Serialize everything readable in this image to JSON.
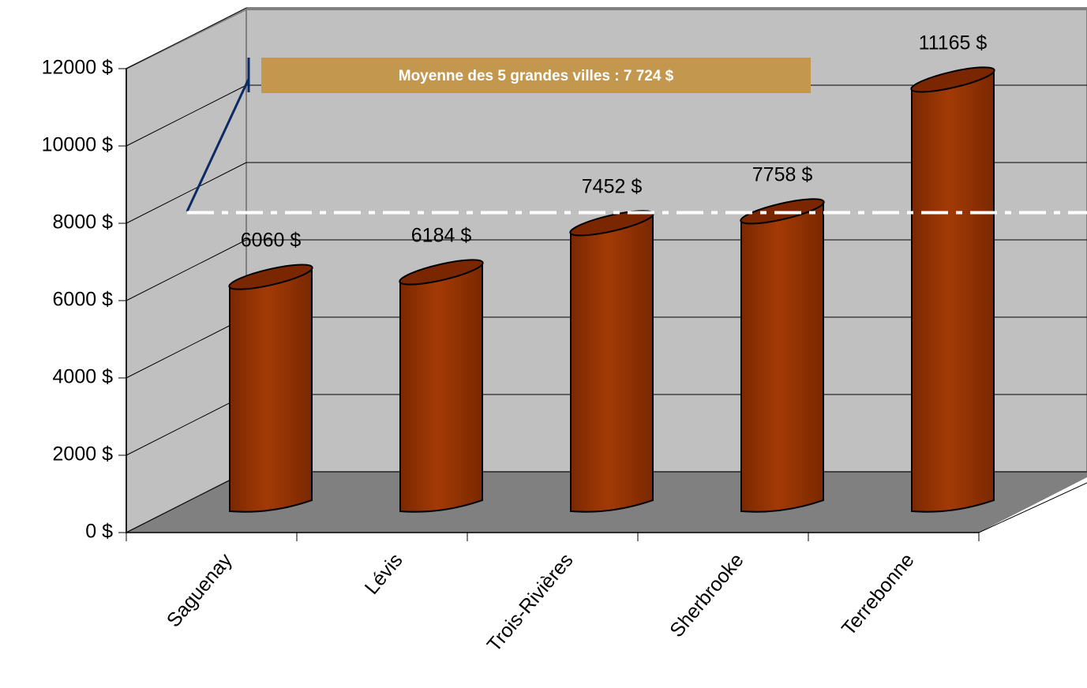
{
  "chart_data": {
    "type": "bar",
    "categories": [
      "Saguenay",
      "Lévis",
      "Trois-Rivières",
      "Sherbrooke",
      "Terrebonne"
    ],
    "values": [
      6060,
      6184,
      7452,
      7758,
      11165
    ],
    "value_labels": [
      "6060 $",
      "6184 $",
      "7452 $",
      "7758 $",
      "11165 $"
    ],
    "color": "#993300",
    "ylim": [
      0,
      12000
    ],
    "yticks": [
      {
        "value": 0,
        "label": "0 $"
      },
      {
        "value": 2000,
        "label": "2000 $"
      },
      {
        "value": 4000,
        "label": "4000 $"
      },
      {
        "value": 6000,
        "label": "6000 $"
      },
      {
        "value": 8000,
        "label": "8000 $"
      },
      {
        "value": 10000,
        "label": "10000 $"
      },
      {
        "value": 12000,
        "label": "12000 $"
      }
    ],
    "grid": true,
    "average_line": {
      "value": 7724,
      "label": "Moyenne des 5 grandes villes : 7 724 $"
    }
  }
}
